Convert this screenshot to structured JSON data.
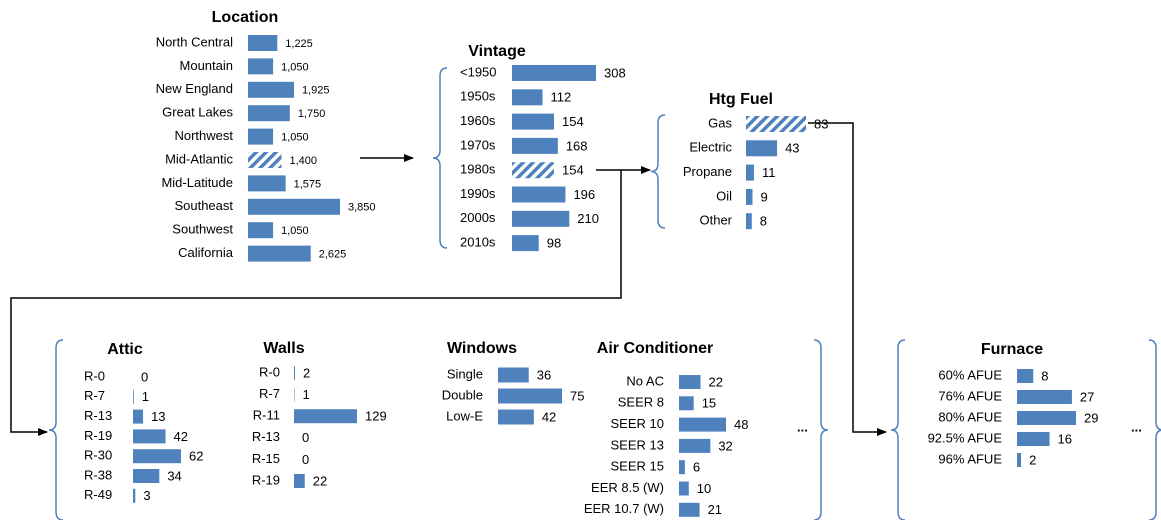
{
  "chart_data": [
    {
      "type": "bar",
      "title": "Location",
      "color": "#4f81bd",
      "hatched": 5,
      "categories": [
        "North Central",
        "Mountain",
        "New England",
        "Great Lakes",
        "Northwest",
        "Mid-Atlantic",
        "Mid-Latitude",
        "Southeast",
        "Southwest",
        "California"
      ],
      "values": [
        1225,
        1050,
        1925,
        1750,
        1050,
        1400,
        1575,
        3850,
        1050,
        2625
      ],
      "value_labels": [
        "1,225",
        "1,050",
        "1,925",
        "1,750",
        "1,050",
        "1,400",
        "1,575",
        "3,850",
        "1,050",
        "2,625"
      ]
    },
    {
      "type": "bar",
      "title": "Vintage",
      "color": "#4f81bd",
      "hatched": 4,
      "categories": [
        "<1950",
        "1950s",
        "1960s",
        "1970s",
        "1980s",
        "1990s",
        "2000s",
        "2010s"
      ],
      "values": [
        308,
        112,
        154,
        168,
        154,
        196,
        210,
        98
      ]
    },
    {
      "type": "bar",
      "title": "Htg Fuel",
      "color": "#4f81bd",
      "hatched": 0,
      "categories": [
        "Gas",
        "Electric",
        "Propane",
        "Oil",
        "Other"
      ],
      "values": [
        83,
        43,
        11,
        9,
        8
      ]
    },
    {
      "type": "bar",
      "title": "Attic",
      "color": "#4f81bd",
      "categories": [
        "R-0",
        "R-7",
        "R-13",
        "R-19",
        "R-30",
        "R-38",
        "R-49"
      ],
      "values": [
        0,
        1,
        13,
        42,
        62,
        34,
        3
      ]
    },
    {
      "type": "bar",
      "title": "Walls",
      "color": "#4f81bd",
      "categories": [
        "R-0",
        "R-7",
        "R-11",
        "R-13",
        "R-15",
        "R-19"
      ],
      "values": [
        2,
        1,
        129,
        0,
        0,
        22
      ]
    },
    {
      "type": "bar",
      "title": "Windows",
      "color": "#4f81bd",
      "categories": [
        "Single",
        "Double",
        "Low-E"
      ],
      "values": [
        36,
        75,
        42
      ]
    },
    {
      "type": "bar",
      "title": "Air Conditioner",
      "color": "#4f81bd",
      "ellipsis": "...",
      "categories": [
        "No AC",
        "SEER 8",
        "SEER 10",
        "SEER 13",
        "SEER 15",
        "EER 8.5 (W)",
        "EER 10.7 (W)"
      ],
      "values": [
        22,
        15,
        48,
        32,
        6,
        10,
        21
      ]
    },
    {
      "type": "bar",
      "title": "Furnace",
      "color": "#4f81bd",
      "ellipsis": "...",
      "categories": [
        "60% AFUE",
        "76% AFUE",
        "80% AFUE",
        "92.5% AFUE",
        "96% AFUE"
      ],
      "values": [
        8,
        27,
        29,
        16,
        2
      ]
    }
  ]
}
